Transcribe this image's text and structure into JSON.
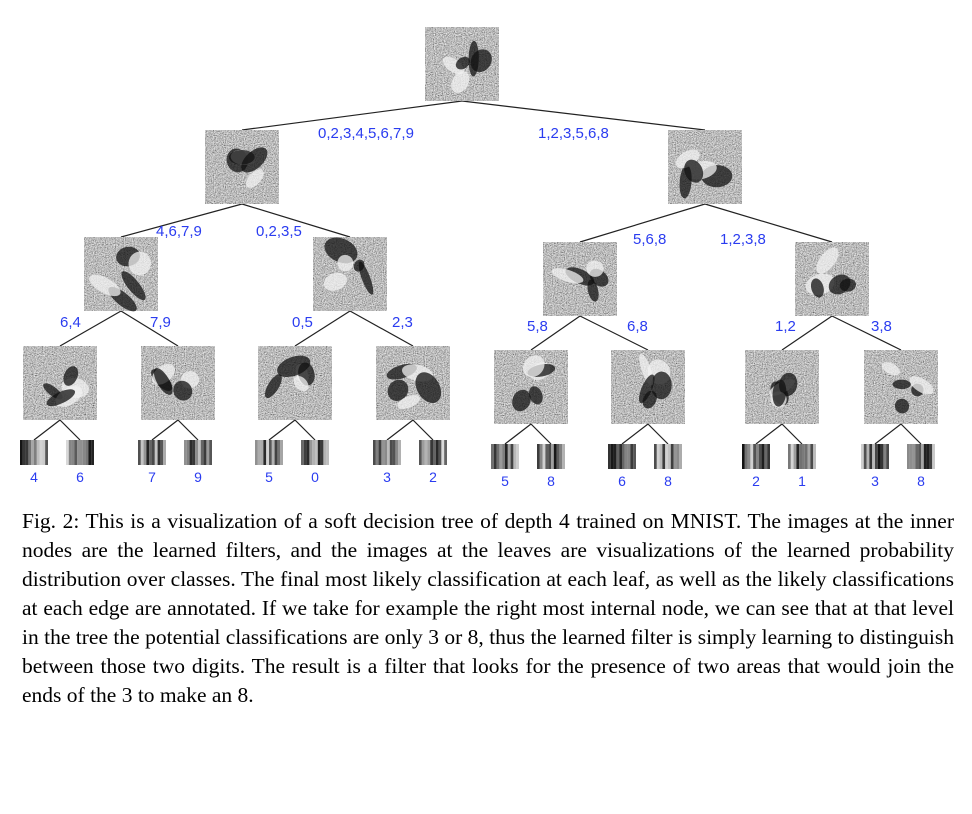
{
  "caption": "Fig. 2: This is a visualization of a soft decision tree of depth 4 trained on MNIST. The images at the inner nodes are the learned filters, and the images at the leaves are visualizations of the learned probability distribution over classes. The final most likely classification at each leaf, as well as the likely classifications at each edge are annotated. If we take for example the right most internal node, we can see that at that level in the tree the potential classifications are only 3 or 8, thus the learned filter is simply learning to distinguish between those two digits. The result is a filter that looks for the presence of two areas that would join the ends of the 3 to make an 8.",
  "tree": {
    "edge_labels": {
      "root_left": "0,2,3,4,5,6,7,9",
      "root_right": "1,2,3,5,6,8",
      "l_left": "4,6,7,9",
      "l_right": "0,2,3,5",
      "r_left": "5,6,8",
      "r_right": "1,2,3,8",
      "ll_left": "6,4",
      "ll_right": "7,9",
      "lr_left": "0,5",
      "lr_right": "2,3",
      "rl_left": "5,8",
      "rl_right": "6,8",
      "rr_left": "1,2",
      "rr_right": "3,8"
    },
    "leaf_labels": [
      "4",
      "6",
      "7",
      "9",
      "5",
      "0",
      "3",
      "2",
      "5",
      "8",
      "6",
      "8",
      "2",
      "1",
      "3",
      "8"
    ]
  }
}
